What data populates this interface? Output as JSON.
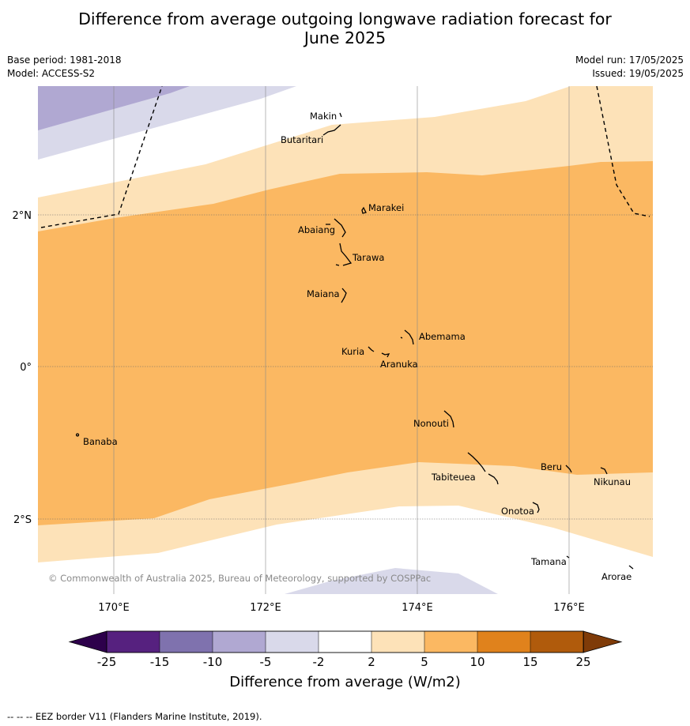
{
  "title_line1": "Difference from average outgoing longwave radiation forecast for",
  "title_line2": "June 2025",
  "meta_left": {
    "base_period": "Base period: 1981-2018",
    "model": "Model: ACCESS-S2"
  },
  "meta_right": {
    "model_run": "Model run: 17/05/2025",
    "issued": "Issued: 19/05/2025"
  },
  "map": {
    "lat_labels": [
      "2°N",
      "0°",
      "2°S"
    ],
    "lon_labels": [
      "170°E",
      "172°E",
      "174°E",
      "176°E"
    ],
    "copyright": "© Commonwealth of Australia 2025, Bureau of Meteorology, supported by COSPPac",
    "places": [
      "Makin",
      "Butaritari",
      "Marakei",
      "Abaiang",
      "Tarawa",
      "Maiana",
      "Abemama",
      "Kuria",
      "Aranuka",
      "Nonouti",
      "Banaba",
      "Tabiteuea",
      "Beru",
      "Nikunau",
      "Onotoa",
      "Tamana",
      "Arorae"
    ]
  },
  "colorbar": {
    "ticks": [
      "-25",
      "-15",
      "-10",
      "-5",
      "-2",
      "2",
      "5",
      "10",
      "15",
      "25"
    ],
    "colors": [
      "#56217f",
      "#7f72ae",
      "#b0a8d2",
      "#d9d9ea",
      "#ffffff",
      "#fde2b8",
      "#fbb862",
      "#e0821c",
      "#b05b0c"
    ],
    "under_color": "#2d004b",
    "over_color": "#7f3b08",
    "label": "Difference from average (W/m2)"
  },
  "footer": "--  --  -- EEZ border V11 (Flanders Marine Institute, 2019)."
}
